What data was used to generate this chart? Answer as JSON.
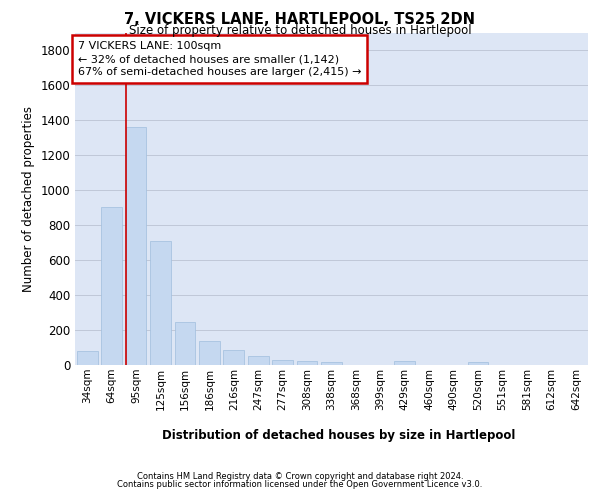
{
  "title": "7, VICKERS LANE, HARTLEPOOL, TS25 2DN",
  "subtitle": "Size of property relative to detached houses in Hartlepool",
  "xlabel": "Distribution of detached houses by size in Hartlepool",
  "ylabel": "Number of detached properties",
  "categories": [
    "34sqm",
    "64sqm",
    "95sqm",
    "125sqm",
    "156sqm",
    "186sqm",
    "216sqm",
    "247sqm",
    "277sqm",
    "308sqm",
    "338sqm",
    "368sqm",
    "399sqm",
    "429sqm",
    "460sqm",
    "490sqm",
    "520sqm",
    "551sqm",
    "581sqm",
    "612sqm",
    "642sqm"
  ],
  "values": [
    80,
    905,
    1360,
    710,
    248,
    140,
    85,
    50,
    30,
    25,
    15,
    0,
    0,
    25,
    0,
    0,
    15,
    0,
    0,
    0,
    0
  ],
  "bar_color": "#c5d8f0",
  "bar_edge_color": "#a0bedd",
  "grid_color": "#c0c8d8",
  "vline_index": 2,
  "vline_color": "#cc0000",
  "annotation_text": "7 VICKERS LANE: 100sqm\n← 32% of detached houses are smaller (1,142)\n67% of semi-detached houses are larger (2,415) →",
  "annotation_box_facecolor": "#ffffff",
  "annotation_border_color": "#cc0000",
  "ylim": [
    0,
    1900
  ],
  "yticks": [
    0,
    200,
    400,
    600,
    800,
    1000,
    1200,
    1400,
    1600,
    1800
  ],
  "footer_line1": "Contains HM Land Registry data © Crown copyright and database right 2024.",
  "footer_line2": "Contains public sector information licensed under the Open Government Licence v3.0.",
  "background_color": "#ffffff",
  "plot_bg_color": "#dde6f5"
}
